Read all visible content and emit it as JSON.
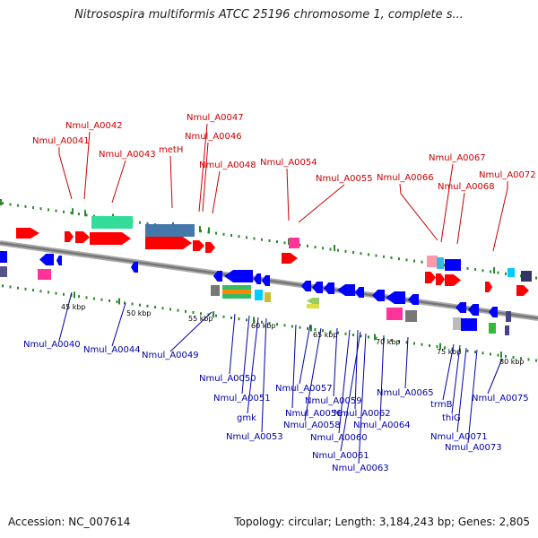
{
  "title": "Nitrosospira multiformis ATCC 25196 chromosome 1, complete s...",
  "footer": {
    "accession": "Accession: NC_007614",
    "info": "Topology: circular; Length: 3,184,243 bp; Genes: 2,805"
  },
  "colors": {
    "forward_label": "#cc0000",
    "reverse_label": "#0000aa",
    "backbone": "#808080",
    "dots": "#2a8a2a",
    "red": "#ff0000",
    "blue": "#0000ff",
    "green": "#33dd99",
    "steel": "#4477aa",
    "magenta": "#ff3399",
    "gray": "#777777",
    "pink": "#ff99aa"
  },
  "scale_labels": [
    "45 kbp",
    "50 kbp",
    "55 kbp",
    "60 kbp",
    "65 kbp",
    "70 kbp",
    "75 kbp",
    "80 kbp"
  ],
  "forward_labels": [
    "Nmul_A0041",
    "Nmul_A0042",
    "Nmul_A0043",
    "metH",
    "Nmul_A0047",
    "Nmul_A0046",
    "Nmul_A0048",
    "Nmul_A0054",
    "Nmul_A0055",
    "Nmul_A0066",
    "Nmul_A0067",
    "Nmul_A0068",
    "Nmul_A0072"
  ],
  "reverse_labels": [
    "Nmul_A0040",
    "Nmul_A0044",
    "Nmul_A0049",
    "Nmul_A0050",
    "Nmul_A0051",
    "gmk",
    "Nmul_A0053",
    "Nmul_A0057",
    "Nmul_A0056",
    "Nmul_A0059",
    "Nmul_A0058",
    "Nmul_A0062",
    "Nmul_A0060",
    "Nmul_A0061",
    "Nmul_A0063",
    "Nmul_A0064",
    "Nmul_A0065",
    "trmB",
    "thiG",
    "Nmul_A0071",
    "Nmul_A0073",
    "Nmul_A0075"
  ]
}
